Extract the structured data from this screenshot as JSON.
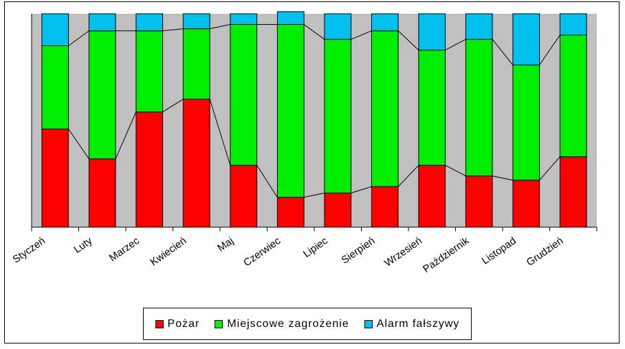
{
  "chart_data": {
    "type": "bar",
    "stacked": true,
    "normalized_percent": true,
    "categories": [
      "Styczeń",
      "Luty",
      "Marzec",
      "Kwiecień",
      "Maj",
      "Czerwiec",
      "Lipiec",
      "Sierpień",
      "Wrzesień",
      "Październik",
      "Listopad",
      "Grudzień"
    ],
    "series": [
      {
        "name": "Pożar",
        "color": "#ff0000",
        "values": [
          46,
          32,
          54,
          60,
          29,
          14,
          16,
          19,
          29,
          24,
          22,
          33
        ]
      },
      {
        "name": "Miejscowe zagrożenie",
        "color": "#00ee00",
        "values": [
          39,
          60,
          38,
          33,
          66,
          81,
          72,
          73,
          54,
          64,
          54,
          57
        ]
      },
      {
        "name": "Alarm fałszywy",
        "color": "#00c0f0",
        "values": [
          15,
          8,
          8,
          7,
          5,
          6,
          12,
          8,
          17,
          12,
          24,
          10
        ]
      }
    ],
    "ylim": [
      0,
      100
    ],
    "grid": false,
    "series_lines": true,
    "plot_background": "#c0c0c0",
    "legend_position": "bottom"
  }
}
